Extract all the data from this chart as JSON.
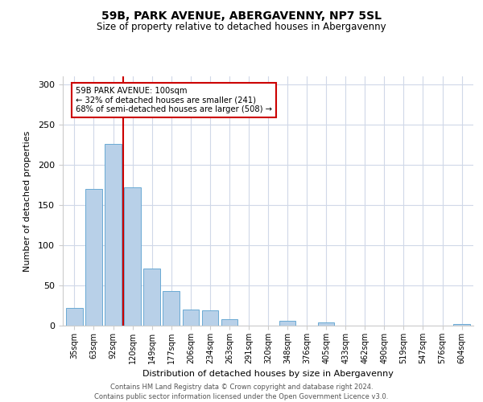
{
  "title": "59B, PARK AVENUE, ABERGAVENNY, NP7 5SL",
  "subtitle": "Size of property relative to detached houses in Abergavenny",
  "xlabel": "Distribution of detached houses by size in Abergavenny",
  "ylabel": "Number of detached properties",
  "bar_color": "#b8d0e8",
  "bar_edge_color": "#6aaad4",
  "background_color": "#ffffff",
  "grid_color": "#d0d8e8",
  "annotation_box_color": "#cc0000",
  "vline_color": "#cc0000",
  "categories": [
    "35sqm",
    "63sqm",
    "92sqm",
    "120sqm",
    "149sqm",
    "177sqm",
    "206sqm",
    "234sqm",
    "263sqm",
    "291sqm",
    "320sqm",
    "348sqm",
    "376sqm",
    "405sqm",
    "433sqm",
    "462sqm",
    "490sqm",
    "519sqm",
    "547sqm",
    "576sqm",
    "604sqm"
  ],
  "values": [
    22,
    170,
    226,
    172,
    71,
    43,
    20,
    19,
    8,
    0,
    0,
    6,
    0,
    4,
    0,
    0,
    0,
    0,
    0,
    0,
    2
  ],
  "ylim": [
    0,
    310
  ],
  "yticks": [
    0,
    50,
    100,
    150,
    200,
    250,
    300
  ],
  "vline_x": 2.5,
  "annotation_title": "59B PARK AVENUE: 100sqm",
  "annotation_line1": "← 32% of detached houses are smaller (241)",
  "annotation_line2": "68% of semi-detached houses are larger (508) →",
  "footer_line1": "Contains HM Land Registry data © Crown copyright and database right 2024.",
  "footer_line2": "Contains public sector information licensed under the Open Government Licence v3.0."
}
